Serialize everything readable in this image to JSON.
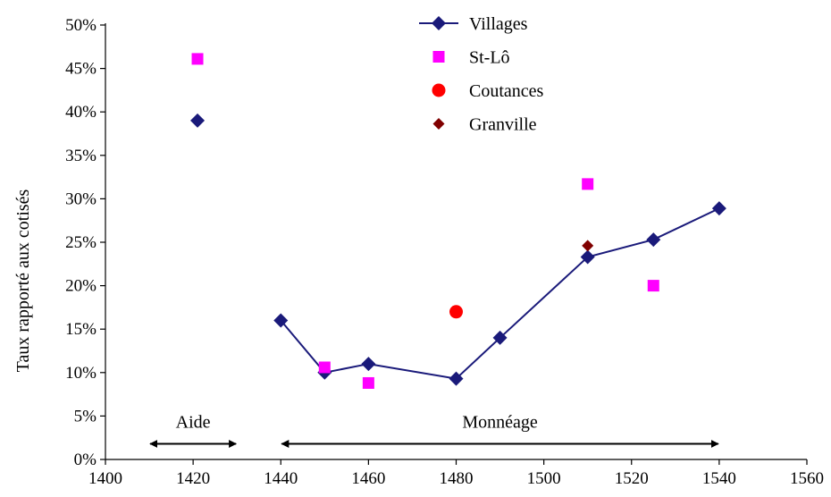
{
  "chart_data": {
    "type": "line",
    "title": "",
    "xlabel": "",
    "ylabel": "Taux rapporté aux cotisés",
    "xlim": [
      1400,
      1560
    ],
    "ylim": [
      0,
      50
    ],
    "xticks": [
      1400,
      1420,
      1440,
      1460,
      1480,
      1500,
      1520,
      1540,
      1560
    ],
    "yticks": [
      0,
      5,
      10,
      15,
      20,
      25,
      30,
      35,
      40,
      45,
      50
    ],
    "ytick_labels": [
      "0%",
      "5%",
      "10%",
      "15%",
      "20%",
      "25%",
      "30%",
      "35%",
      "40%",
      "45%",
      "50%"
    ],
    "grid": false,
    "legend_position": "top-center",
    "series": [
      {
        "name": "Villages",
        "style": "line+marker",
        "marker": "diamond",
        "color": "#1a1a7a",
        "x": [
          1440,
          1450,
          1460,
          1480,
          1490,
          1510,
          1525,
          1540
        ],
        "y": [
          16,
          10,
          11,
          9.3,
          14,
          23.3,
          25.3,
          28.9
        ],
        "isolated": [
          {
            "x": 1421,
            "y": 39
          }
        ]
      },
      {
        "name": "St-Lô",
        "style": "marker",
        "marker": "square",
        "color": "#ff00ff",
        "x": [
          1421,
          1450,
          1460,
          1510,
          1525
        ],
        "y": [
          46.1,
          10.6,
          8.8,
          31.7,
          20
        ]
      },
      {
        "name": "Coutances",
        "style": "marker",
        "marker": "circle",
        "color": "#ff0000",
        "x": [
          1480
        ],
        "y": [
          17
        ]
      },
      {
        "name": "Granville",
        "style": "marker",
        "marker": "diamond-small",
        "color": "#800000",
        "x": [
          1510
        ],
        "y": [
          24.6
        ]
      }
    ],
    "annotations": [
      {
        "label": "Aide",
        "from": 1410,
        "to": 1430,
        "y": 1.8
      },
      {
        "label": "Monnéage",
        "from": 1440,
        "to": 1540,
        "y": 1.8
      }
    ]
  }
}
